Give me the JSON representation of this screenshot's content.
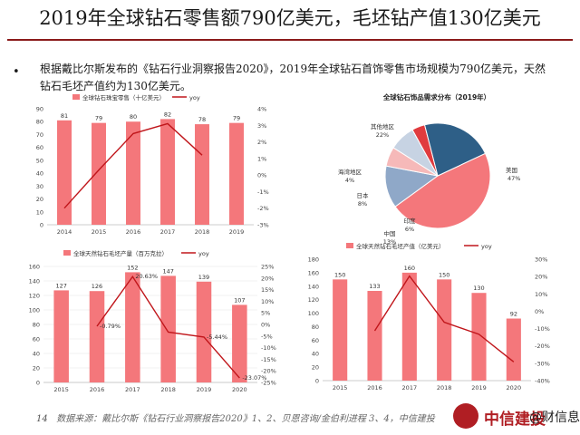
{
  "slide": {
    "title": "2019年全球钻石零售额790亿美元，毛坯钻产值130亿美元",
    "bullet_symbol": "•",
    "paragraph": "根据戴比尔斯发布的《钻石行业洞察报告2020》，2019年全球钻石首饰零售市场规模为790亿美元，天然钻石毛坯产值约为130亿美元。",
    "page_number": "14",
    "source": "数据来源：戴比尔斯《钻石行业洞察报告2020》1、2、贝恩咨询/金伯利进程 3、4，中信建投",
    "logo_text": "中信建投",
    "logo_sub": "@财信息"
  },
  "chart_data": [
    {
      "id": "retail",
      "type": "bar",
      "categories": [
        "2014",
        "2015",
        "2016",
        "2017",
        "2018",
        "2019"
      ],
      "series": [
        {
          "name": "全球钻石珠宝零售（十亿美元）",
          "type": "bar",
          "axis": "left",
          "values": [
            81,
            79,
            80,
            82,
            78,
            79
          ],
          "labels": [
            "81",
            "79",
            "80",
            "82",
            "78",
            "79"
          ]
        },
        {
          "name": "yoy",
          "type": "line",
          "axis": "right",
          "values": [
            -2.0,
            0.3,
            2.5,
            3.1,
            1.2,
            null
          ]
        }
      ],
      "left_ticks": [
        "0",
        "10",
        "20",
        "30",
        "40",
        "50",
        "60",
        "70",
        "80",
        "90"
      ],
      "right_ticks": [
        "-3%",
        "-2%",
        "-1%",
        "0%",
        "1%",
        "2%",
        "3%",
        "4%"
      ],
      "ylim_left": [
        0,
        90
      ],
      "ylim_right": [
        -3,
        4
      ],
      "colors": {
        "bar": "#f4777b",
        "line": "#c0161b"
      }
    },
    {
      "id": "pie",
      "type": "pie",
      "title": "全球钻石饰品需求分布（2019年）",
      "slices": [
        {
          "label": "美国",
          "pct": "47%",
          "value": 47,
          "color": "#f4777b"
        },
        {
          "label": "中国",
          "pct": "13%",
          "value": 13,
          "color": "#8fa8c8"
        },
        {
          "label": "印度",
          "pct": "6%",
          "value": 6,
          "color": "#f6b9b9"
        },
        {
          "label": "日本",
          "pct": "8%",
          "value": 8,
          "color": "#c7d3e3"
        },
        {
          "label": "海湾地区",
          "pct": "4%",
          "value": 4,
          "color": "#e03b3e"
        },
        {
          "label": "其他地区",
          "pct": "22%",
          "value": 22,
          "color": "#2e5f87"
        }
      ]
    },
    {
      "id": "rough",
      "type": "bar",
      "categories": [
        "2015",
        "2016",
        "2017",
        "2018",
        "2019",
        "2020"
      ],
      "series": [
        {
          "name": "全球天然钻石毛坯产量（百万克拉）",
          "type": "bar",
          "axis": "left",
          "values": [
            127,
            126,
            152,
            147,
            139,
            107
          ],
          "labels": [
            "127",
            "126",
            "152",
            "147",
            "139",
            "107"
          ]
        },
        {
          "name": "yoy",
          "type": "line",
          "axis": "right",
          "values": [
            null,
            -0.79,
            20.63,
            -3.3,
            -5.44,
            -23.07
          ],
          "labels": [
            "",
            "-0.79%",
            "20.63%",
            "",
            "-5.44%",
            "-23.07%"
          ]
        }
      ],
      "left_ticks": [
        "0",
        "20",
        "40",
        "60",
        "80",
        "100",
        "120",
        "140",
        "160"
      ],
      "right_ticks": [
        "-25%",
        "-20%",
        "-15%",
        "-10%",
        "-5%",
        "0%",
        "5%",
        "10%",
        "15%",
        "20%",
        "25%"
      ],
      "ylim_left": [
        0,
        160
      ],
      "ylim_right": [
        -25,
        25
      ],
      "colors": {
        "bar": "#f4777b",
        "line": "#c0161b"
      }
    },
    {
      "id": "value",
      "type": "bar",
      "categories": [
        "2015",
        "2016",
        "2017",
        "2018",
        "2019",
        "2020"
      ],
      "series": [
        {
          "name": "全球天然钻石毛坯产值（亿美元）",
          "type": "bar",
          "axis": "left",
          "values": [
            150,
            133,
            160,
            150,
            130,
            92
          ],
          "labels": [
            "150",
            "133",
            "160",
            "150",
            "130",
            "92"
          ]
        },
        {
          "name": "yoy",
          "type": "line",
          "axis": "right",
          "values": [
            null,
            -11.3,
            20.3,
            -6.3,
            -13.3,
            -29.2
          ]
        }
      ],
      "left_ticks": [
        "0",
        "20",
        "40",
        "60",
        "80",
        "100",
        "120",
        "140",
        "160",
        "180"
      ],
      "right_ticks": [
        "-40%",
        "-30%",
        "-20%",
        "-10%",
        "0%",
        "10%",
        "20%",
        "30%"
      ],
      "ylim_left": [
        0,
        180
      ],
      "ylim_right": [
        -40,
        30
      ],
      "colors": {
        "bar": "#f4777b",
        "line": "#c0161b"
      }
    }
  ]
}
